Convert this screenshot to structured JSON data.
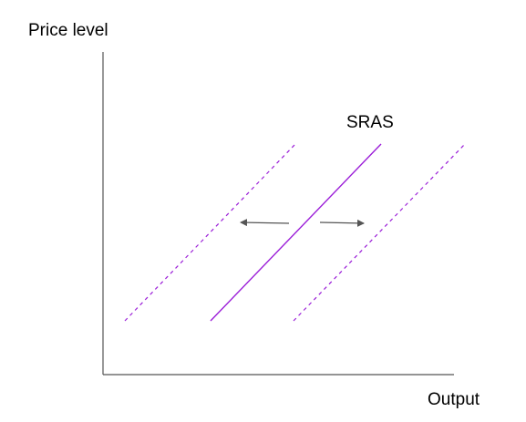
{
  "diagram": {
    "y_axis_label": "Price level",
    "x_axis_label": "Output",
    "curve_label": "SRAS"
  },
  "colors": {
    "axis": "#555555",
    "curve": "#9b1ed8",
    "arrow": "#555555",
    "text": "#000000"
  },
  "shifts": {
    "left": "dashed curve, shift to the left",
    "right": "dashed curve, shift to the right"
  }
}
